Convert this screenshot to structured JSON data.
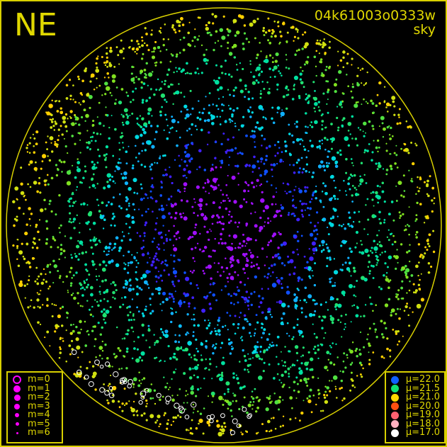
{
  "direction_label": "NE",
  "title": {
    "id": "04k61003o0333w",
    "subtitle": "sky"
  },
  "magnitude_legend": {
    "color": "#ff00ff",
    "items": [
      {
        "label": "m=0",
        "symbol": "ring"
      },
      {
        "label": "m=1",
        "symbol": "dot"
      },
      {
        "label": "m=2",
        "symbol": "dot"
      },
      {
        "label": "m=3",
        "symbol": "dot"
      },
      {
        "label": "m=4",
        "symbol": "dot"
      },
      {
        "label": "m=5",
        "symbol": "dot"
      },
      {
        "label": "m=6",
        "symbol": "dot"
      }
    ]
  },
  "brightness_legend": {
    "items": [
      {
        "label": "μ=22.0",
        "color": "#1060ff"
      },
      {
        "label": "μ=21.5",
        "color": "#10e070"
      },
      {
        "label": "μ=21.0",
        "color": "#ffd800"
      },
      {
        "label": "μ=20.0",
        "color": "#ff5010"
      },
      {
        "label": "μ=19.0",
        "color": "#ff6070"
      },
      {
        "label": "μ=18.0",
        "color": "#ffb0c0"
      },
      {
        "label": "μ=17.0",
        "color": "#ffffff"
      }
    ]
  },
  "colors": {
    "frame": "#d8d000",
    "horizon": "#d8d000",
    "background": "#000000"
  }
}
